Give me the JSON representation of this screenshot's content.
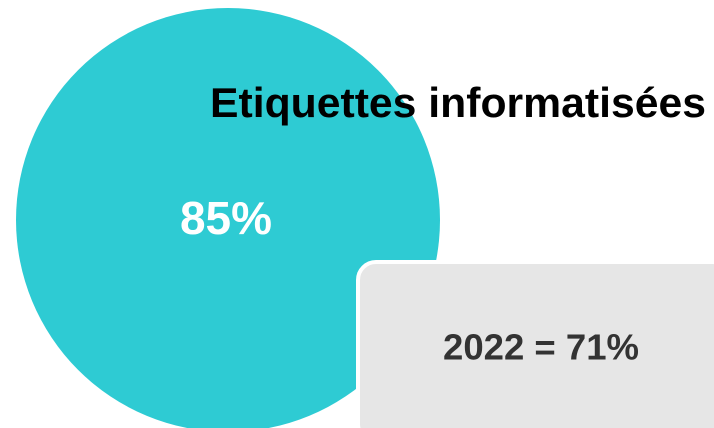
{
  "title": "Etiquettes informatisées",
  "main_stat": "85%",
  "comparison": "2022 = 71%"
}
